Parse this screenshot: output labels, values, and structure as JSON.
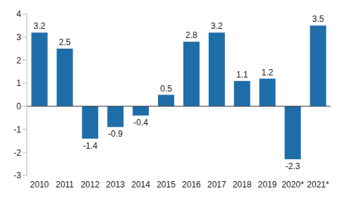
{
  "chart_data": {
    "type": "bar",
    "categories": [
      "2010",
      "2011",
      "2012",
      "2013",
      "2014",
      "2015",
      "2016",
      "2017",
      "2018",
      "2019",
      "2020*",
      "2021*"
    ],
    "values": [
      3.2,
      2.5,
      -1.4,
      -0.9,
      -0.4,
      0.5,
      2.8,
      3.2,
      1.1,
      1.2,
      -2.3,
      3.5
    ],
    "color": "#1f6ea9",
    "ylim": [
      -3,
      4
    ],
    "yticks": [
      -3,
      -2,
      -1,
      0,
      1,
      2,
      3,
      4
    ],
    "grid": false,
    "data_labels": true
  }
}
